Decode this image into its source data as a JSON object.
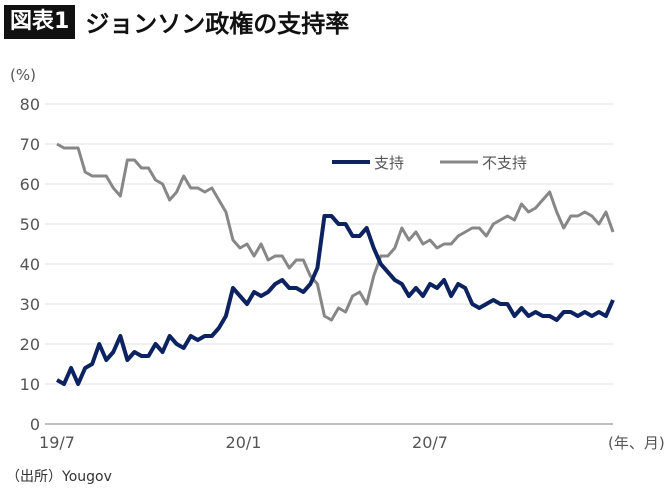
{
  "title": {
    "badge": "図表1",
    "text": "ジョンソン政権の支持率"
  },
  "source": "（出所）Yougov",
  "chart_data": {
    "type": "line",
    "ylabel": "(%)",
    "xunit": "(年、月)",
    "ylim": [
      0,
      80
    ],
    "yticks": [
      0,
      10,
      20,
      30,
      40,
      50,
      60,
      70,
      80
    ],
    "xticks": [
      {
        "label": "19/7",
        "index": 0
      },
      {
        "label": "20/1",
        "index": 26.5
      },
      {
        "label": "20/7",
        "index": 53
      }
    ],
    "grid": true,
    "legend": "top-right",
    "series": [
      {
        "name": "支持",
        "color": "#0d2260",
        "values": [
          11,
          10,
          14,
          10,
          14,
          15,
          20,
          16,
          18,
          22,
          16,
          18,
          17,
          17,
          20,
          18,
          22,
          20,
          19,
          22,
          21,
          22,
          22,
          24,
          27,
          34,
          32,
          30,
          33,
          32,
          33,
          35,
          36,
          34,
          34,
          33,
          35,
          39,
          52,
          52,
          50,
          50,
          47,
          47,
          49,
          44,
          40,
          38,
          36,
          35,
          32,
          34,
          32,
          35,
          34,
          36,
          32,
          35,
          34,
          30,
          29,
          30,
          31,
          30,
          30,
          27,
          29,
          27,
          28,
          27,
          27,
          26,
          28,
          28,
          27,
          28,
          27,
          28,
          27,
          31
        ]
      },
      {
        "name": "不支持",
        "color": "#878787",
        "values": [
          70,
          69,
          69,
          69,
          63,
          62,
          62,
          62,
          59,
          57,
          66,
          66,
          64,
          64,
          61,
          60,
          56,
          58,
          62,
          59,
          59,
          58,
          59,
          56,
          53,
          46,
          44,
          45,
          42,
          45,
          41,
          42,
          42,
          39,
          41,
          41,
          37,
          35,
          27,
          26,
          29,
          28,
          32,
          33,
          30,
          37,
          42,
          42,
          44,
          49,
          46,
          48,
          45,
          46,
          44,
          45,
          45,
          47,
          48,
          49,
          49,
          47,
          50,
          51,
          52,
          51,
          55,
          53,
          54,
          56,
          58,
          53,
          49,
          52,
          52,
          53,
          52,
          50,
          53,
          48
        ]
      }
    ]
  }
}
